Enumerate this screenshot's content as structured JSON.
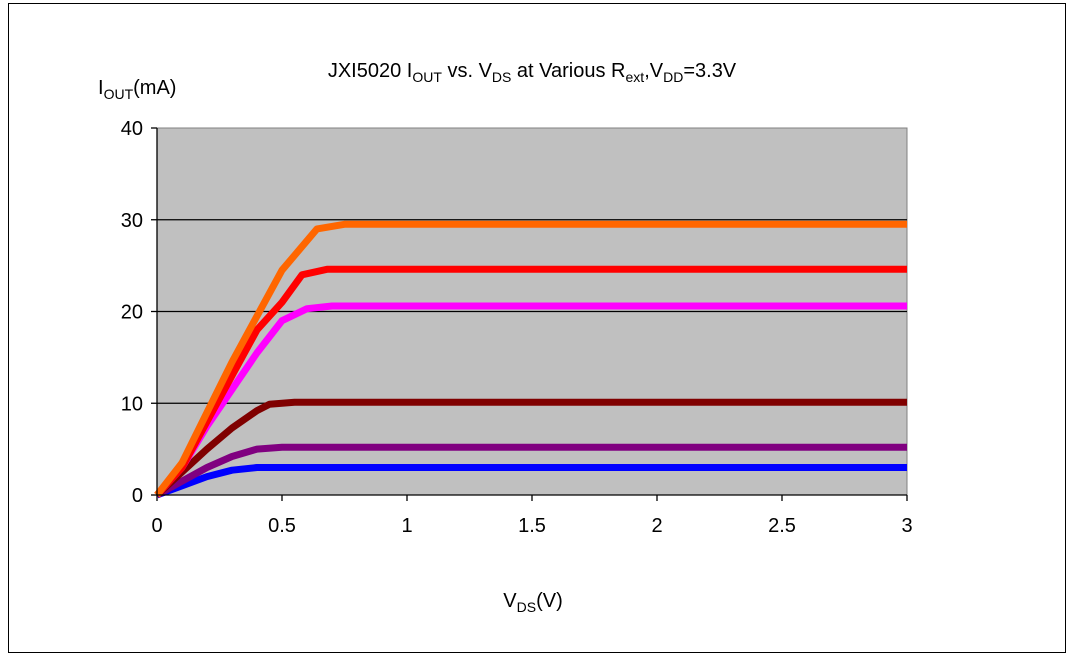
{
  "chart_data": {
    "type": "line",
    "title": {
      "main": "JXI5020 I",
      "sub1": "OUT",
      "mid1": " vs. V",
      "sub2": "DS",
      "mid2": " at Various R",
      "sub3": "ext",
      "mid3": ",V",
      "sub4": "DD",
      "end": "=3.3V"
    },
    "ylabel": {
      "main": "I",
      "sub": "OUT",
      "unit": "(mA)"
    },
    "xlabel": {
      "main": "V",
      "sub": "DS",
      "unit": "(V)"
    },
    "xlim": [
      0,
      3
    ],
    "ylim": [
      0,
      40
    ],
    "x_ticks": [
      "0",
      "0.5",
      "1",
      "1.5",
      "2",
      "2.5",
      "3"
    ],
    "y_ticks": [
      "0",
      "10",
      "20",
      "30",
      "40"
    ],
    "grid": "horizontal",
    "plot_background": "#c0c0c0",
    "series": [
      {
        "color": "#0000ff",
        "points": [
          [
            0,
            0
          ],
          [
            0.1,
            1
          ],
          [
            0.2,
            2
          ],
          [
            0.3,
            2.7
          ],
          [
            0.4,
            3
          ],
          [
            0.5,
            3
          ],
          [
            1,
            3
          ],
          [
            2,
            3
          ],
          [
            3,
            3
          ]
        ]
      },
      {
        "color": "#800080",
        "points": [
          [
            0,
            0
          ],
          [
            0.1,
            1.5
          ],
          [
            0.2,
            3
          ],
          [
            0.3,
            4.2
          ],
          [
            0.4,
            5
          ],
          [
            0.5,
            5.2
          ],
          [
            1,
            5.2
          ],
          [
            2,
            5.2
          ],
          [
            3,
            5.2
          ]
        ]
      },
      {
        "color": "#800000",
        "points": [
          [
            0,
            0
          ],
          [
            0.1,
            2.5
          ],
          [
            0.2,
            5
          ],
          [
            0.3,
            7.3
          ],
          [
            0.4,
            9.2
          ],
          [
            0.45,
            9.9
          ],
          [
            0.55,
            10.1
          ],
          [
            1,
            10.1
          ],
          [
            3,
            10.1
          ]
        ]
      },
      {
        "color": "#ff00ff",
        "points": [
          [
            0,
            0
          ],
          [
            0.1,
            3
          ],
          [
            0.2,
            7.5
          ],
          [
            0.3,
            11.5
          ],
          [
            0.4,
            15.5
          ],
          [
            0.5,
            19
          ],
          [
            0.6,
            20.3
          ],
          [
            0.7,
            20.6
          ],
          [
            1,
            20.6
          ],
          [
            3,
            20.6
          ]
        ]
      },
      {
        "color": "#ff0000",
        "points": [
          [
            0,
            0
          ],
          [
            0.1,
            3
          ],
          [
            0.2,
            8
          ],
          [
            0.3,
            13
          ],
          [
            0.4,
            18
          ],
          [
            0.5,
            21
          ],
          [
            0.58,
            24
          ],
          [
            0.68,
            24.6
          ],
          [
            1,
            24.6
          ],
          [
            3,
            24.6
          ]
        ]
      },
      {
        "color": "#ff6600",
        "points": [
          [
            0,
            0
          ],
          [
            0.1,
            3.5
          ],
          [
            0.2,
            9
          ],
          [
            0.3,
            14.5
          ],
          [
            0.4,
            19.5
          ],
          [
            0.5,
            24.5
          ],
          [
            0.64,
            29
          ],
          [
            0.75,
            29.5
          ],
          [
            1,
            29.5
          ],
          [
            3,
            29.5
          ]
        ]
      }
    ]
  }
}
